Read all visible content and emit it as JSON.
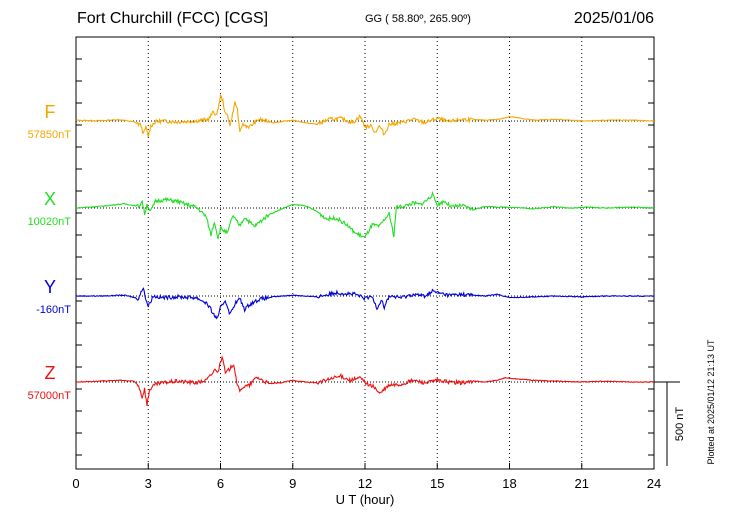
{
  "header": {
    "station": "Fort Churchill (FCC)  [CGS]",
    "coords": "GG ( 58.80º, 265.90º)",
    "date": "2025/01/06"
  },
  "side_note": "Plotted at 2025/01/12 21:13 UT",
  "chart_data": {
    "type": "line",
    "title": "Fort Churchill (FCC)  [CGS]",
    "xlabel": "U T (hour)",
    "xlim": [
      0,
      24
    ],
    "xticks": [
      "0",
      "3",
      "6",
      "9",
      "12",
      "15",
      "18",
      "21",
      "24"
    ],
    "grid": "dotted vertical lines every 3 h, dotted baseline per trace",
    "scale_bar": {
      "label": "500 nT",
      "value_nT": 500
    },
    "series": [
      {
        "name": "F",
        "baseline_label": "57850nT",
        "color": "#f5a800",
        "points": [
          [
            0,
            4
          ],
          [
            1,
            2
          ],
          [
            1.8,
            8
          ],
          [
            2.4,
            -5
          ],
          [
            2.7,
            -25
          ],
          [
            2.8,
            -80
          ],
          [
            2.9,
            -35
          ],
          [
            3.0,
            -90
          ],
          [
            3.1,
            -30
          ],
          [
            3.3,
            -5
          ],
          [
            3.6,
            0
          ],
          [
            4.2,
            -5
          ],
          [
            5.0,
            0
          ],
          [
            5.5,
            10
          ],
          [
            5.7,
            55
          ],
          [
            5.85,
            35
          ],
          [
            6.0,
            150
          ],
          [
            6.1,
            120
          ],
          [
            6.2,
            40
          ],
          [
            6.3,
            35
          ],
          [
            6.4,
            -30
          ],
          [
            6.6,
            110
          ],
          [
            6.7,
            70
          ],
          [
            6.8,
            -75
          ],
          [
            6.9,
            -20
          ],
          [
            7.2,
            -35
          ],
          [
            7.6,
            10
          ],
          [
            8.2,
            -10
          ],
          [
            9.0,
            5
          ],
          [
            9.5,
            -10
          ],
          [
            10.0,
            -20
          ],
          [
            10.5,
            10
          ],
          [
            11.0,
            15
          ],
          [
            11.5,
            -10
          ],
          [
            11.8,
            30
          ],
          [
            12.0,
            -35
          ],
          [
            12.3,
            -30
          ],
          [
            12.4,
            -70
          ],
          [
            12.6,
            -30
          ],
          [
            12.8,
            -80
          ],
          [
            13.0,
            -20
          ],
          [
            13.5,
            -10
          ],
          [
            14.0,
            10
          ],
          [
            14.5,
            -10
          ],
          [
            15.0,
            15
          ],
          [
            15.5,
            -5
          ],
          [
            16.0,
            10
          ],
          [
            17.0,
            5
          ],
          [
            17.5,
            10
          ],
          [
            18.0,
            25
          ],
          [
            18.3,
            20
          ],
          [
            19.0,
            5
          ],
          [
            20.0,
            10
          ],
          [
            21.0,
            0
          ],
          [
            22.0,
            5
          ],
          [
            23.0,
            5
          ],
          [
            24.0,
            0
          ]
        ]
      },
      {
        "name": "X",
        "baseline_label": "10020nT",
        "color": "#22dd22",
        "points": [
          [
            0,
            0
          ],
          [
            1,
            10
          ],
          [
            2,
            25
          ],
          [
            2.6,
            10
          ],
          [
            2.75,
            40
          ],
          [
            2.85,
            -35
          ],
          [
            2.95,
            20
          ],
          [
            3.1,
            -20
          ],
          [
            3.3,
            40
          ],
          [
            3.7,
            50
          ],
          [
            4.2,
            40
          ],
          [
            4.6,
            20
          ],
          [
            5.0,
            5
          ],
          [
            5.4,
            -50
          ],
          [
            5.6,
            -160
          ],
          [
            5.75,
            -80
          ],
          [
            5.9,
            -180
          ],
          [
            6.0,
            -120
          ],
          [
            6.3,
            -150
          ],
          [
            6.5,
            -45
          ],
          [
            6.8,
            -105
          ],
          [
            7.0,
            -55
          ],
          [
            7.4,
            -110
          ],
          [
            8.0,
            -40
          ],
          [
            8.4,
            -15
          ],
          [
            8.8,
            10
          ],
          [
            9.0,
            20
          ],
          [
            9.5,
            15
          ],
          [
            10.0,
            -20
          ],
          [
            10.4,
            -65
          ],
          [
            10.8,
            -60
          ],
          [
            11.2,
            -95
          ],
          [
            11.6,
            -150
          ],
          [
            12.0,
            -175
          ],
          [
            12.3,
            -100
          ],
          [
            12.6,
            -110
          ],
          [
            12.8,
            -70
          ],
          [
            13.0,
            -35
          ],
          [
            13.2,
            -165
          ],
          [
            13.3,
            5
          ],
          [
            13.6,
            10
          ],
          [
            14.0,
            30
          ],
          [
            14.3,
            20
          ],
          [
            14.6,
            50
          ],
          [
            14.8,
            80
          ],
          [
            15.0,
            20
          ],
          [
            15.3,
            40
          ],
          [
            15.6,
            5
          ],
          [
            16.0,
            15
          ],
          [
            16.5,
            -10
          ],
          [
            17.0,
            10
          ],
          [
            17.5,
            5
          ],
          [
            18.0,
            5
          ],
          [
            18.6,
            0
          ],
          [
            19.0,
            -5
          ],
          [
            19.8,
            8
          ],
          [
            20.5,
            0
          ],
          [
            21.2,
            5
          ],
          [
            22.0,
            0
          ],
          [
            23.0,
            5
          ],
          [
            24.0,
            0
          ]
        ]
      },
      {
        "name": "Y",
        "baseline_label": "-160nT",
        "color": "#0000dd",
        "points": [
          [
            0,
            0
          ],
          [
            1,
            0
          ],
          [
            2,
            5
          ],
          [
            2.6,
            -15
          ],
          [
            2.8,
            55
          ],
          [
            2.9,
            -20
          ],
          [
            3.0,
            -60
          ],
          [
            3.2,
            0
          ],
          [
            3.6,
            -10
          ],
          [
            4.2,
            -5
          ],
          [
            5.0,
            -10
          ],
          [
            5.4,
            -40
          ],
          [
            5.6,
            -80
          ],
          [
            5.75,
            -120
          ],
          [
            5.9,
            -130
          ],
          [
            6.0,
            -70
          ],
          [
            6.2,
            -25
          ],
          [
            6.4,
            -110
          ],
          [
            6.6,
            -45
          ],
          [
            6.8,
            -15
          ],
          [
            7.0,
            -80
          ],
          [
            7.2,
            -50
          ],
          [
            7.6,
            -20
          ],
          [
            8.2,
            -5
          ],
          [
            9.0,
            5
          ],
          [
            10.0,
            -5
          ],
          [
            10.8,
            20
          ],
          [
            11.2,
            15
          ],
          [
            11.6,
            10
          ],
          [
            12.0,
            -15
          ],
          [
            12.3,
            -5
          ],
          [
            12.5,
            -70
          ],
          [
            12.7,
            -20
          ],
          [
            12.8,
            -70
          ],
          [
            13.0,
            0
          ],
          [
            13.5,
            -10
          ],
          [
            14.0,
            10
          ],
          [
            14.5,
            0
          ],
          [
            14.8,
            30
          ],
          [
            15.0,
            20
          ],
          [
            15.5,
            5
          ],
          [
            16.0,
            10
          ],
          [
            16.5,
            5
          ],
          [
            17.0,
            0
          ],
          [
            17.5,
            10
          ],
          [
            18.0,
            -10
          ],
          [
            19.0,
            -5
          ],
          [
            20.0,
            0
          ],
          [
            21.0,
            -5
          ],
          [
            22.0,
            0
          ],
          [
            23.0,
            0
          ],
          [
            24.0,
            0
          ]
        ]
      },
      {
        "name": "Z",
        "baseline_label": "57000nT",
        "color": "#ee1111",
        "points": [
          [
            0,
            0
          ],
          [
            1,
            5
          ],
          [
            1.8,
            10
          ],
          [
            2.4,
            5
          ],
          [
            2.6,
            -20
          ],
          [
            2.75,
            -90
          ],
          [
            2.85,
            -40
          ],
          [
            2.95,
            -140
          ],
          [
            3.05,
            -45
          ],
          [
            3.3,
            -15
          ],
          [
            3.6,
            -5
          ],
          [
            4.2,
            5
          ],
          [
            5.0,
            -5
          ],
          [
            5.4,
            10
          ],
          [
            5.6,
            40
          ],
          [
            5.8,
            80
          ],
          [
            5.9,
            55
          ],
          [
            6.0,
            130
          ],
          [
            6.1,
            140
          ],
          [
            6.2,
            50
          ],
          [
            6.4,
            80
          ],
          [
            6.55,
            110
          ],
          [
            6.7,
            -20
          ],
          [
            6.8,
            -60
          ],
          [
            6.9,
            -30
          ],
          [
            7.2,
            -20
          ],
          [
            7.5,
            30
          ],
          [
            8.0,
            -10
          ],
          [
            8.5,
            -5
          ],
          [
            9.0,
            10
          ],
          [
            9.5,
            0
          ],
          [
            10.0,
            -5
          ],
          [
            10.5,
            15
          ],
          [
            11.0,
            35
          ],
          [
            11.4,
            10
          ],
          [
            11.8,
            25
          ],
          [
            12.0,
            0
          ],
          [
            12.2,
            -20
          ],
          [
            12.4,
            -30
          ],
          [
            12.6,
            -70
          ],
          [
            12.8,
            -45
          ],
          [
            13.0,
            -20
          ],
          [
            13.5,
            -15
          ],
          [
            14.0,
            10
          ],
          [
            14.5,
            -5
          ],
          [
            15.0,
            10
          ],
          [
            15.5,
            0
          ],
          [
            16.0,
            -5
          ],
          [
            16.5,
            5
          ],
          [
            17.0,
            0
          ],
          [
            17.5,
            10
          ],
          [
            17.8,
            25
          ],
          [
            18.2,
            20
          ],
          [
            19.0,
            10
          ],
          [
            20.0,
            5
          ],
          [
            21.0,
            0
          ],
          [
            22.0,
            5
          ],
          [
            23.0,
            0
          ],
          [
            24.0,
            0
          ]
        ]
      }
    ]
  }
}
